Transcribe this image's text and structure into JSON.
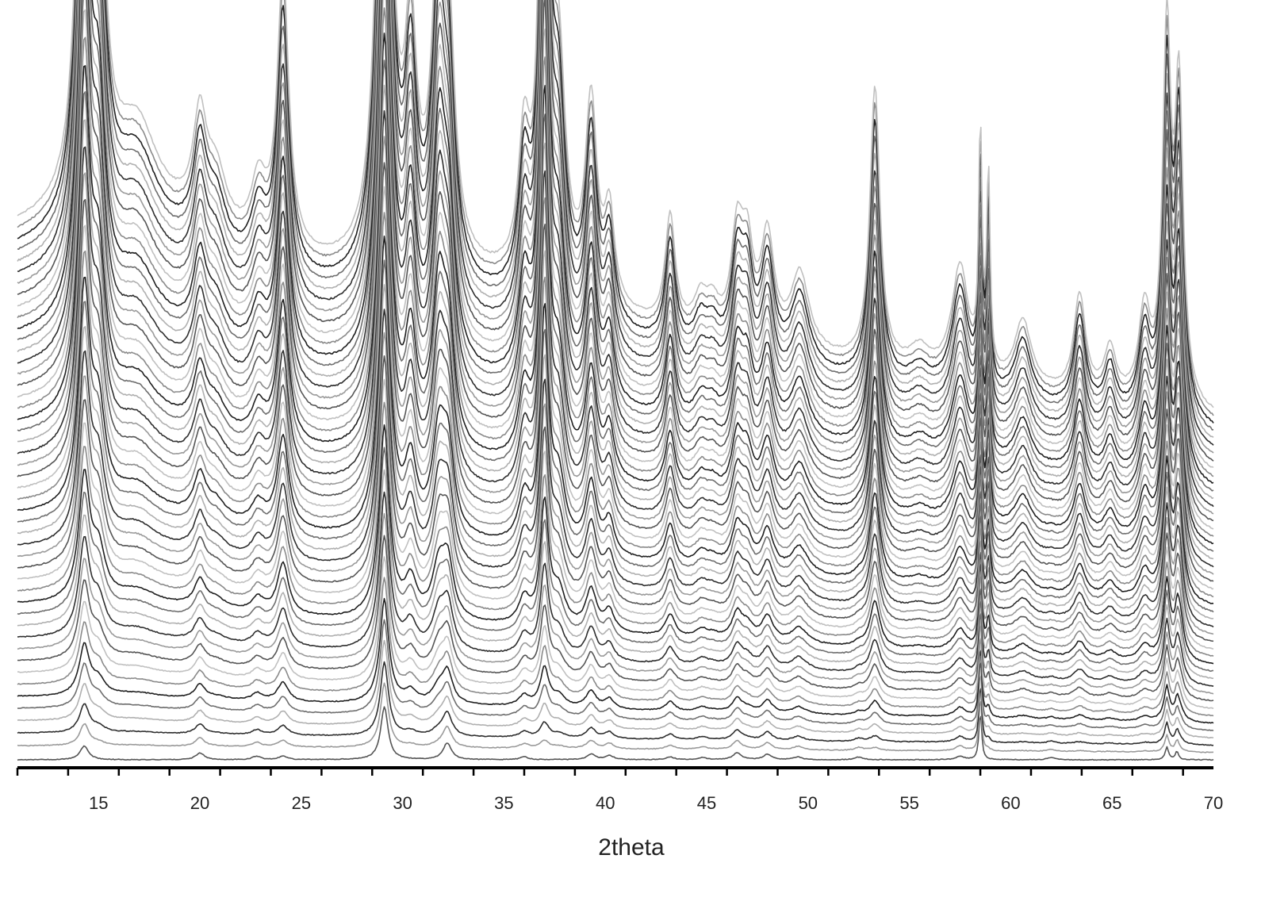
{
  "chart_data": {
    "type": "line",
    "title": "",
    "xlabel": "2theta",
    "ylabel": "",
    "xlim": [
      11,
      70
    ],
    "x_ticks": [
      15,
      20,
      25,
      30,
      35,
      40,
      45,
      50,
      55,
      60,
      65,
      70
    ],
    "x_tick_labels": [
      "15",
      "20",
      "25",
      "30",
      "35",
      "40",
      "45",
      "50",
      "55",
      "60",
      "65",
      "70"
    ],
    "minor_tick_step": 2.5,
    "y_axis_visible": false,
    "grid": false,
    "legend": "none",
    "series_count": 48,
    "series_colors": [
      "#555555",
      "#9a9a9a",
      "#2e2e2e",
      "#b0b0b0",
      "#6e6e6e",
      "#1f1f1f",
      "#8a8a8a",
      "#c0c0c0"
    ],
    "stacking": "waterfall",
    "initial_phase_peaks": [
      {
        "x": 14.3,
        "height": 1.0,
        "width": 0.25
      },
      {
        "x": 20.0,
        "height": 0.5,
        "width": 0.25
      },
      {
        "x": 22.8,
        "height": 0.25,
        "width": 0.25
      },
      {
        "x": 24.1,
        "height": 0.25,
        "width": 0.25
      },
      {
        "x": 29.1,
        "height": 3.8,
        "width": 0.22
      },
      {
        "x": 32.2,
        "height": 1.2,
        "width": 0.25
      },
      {
        "x": 36.0,
        "height": 0.2,
        "width": 0.25
      },
      {
        "x": 39.3,
        "height": 0.4,
        "width": 0.25
      },
      {
        "x": 40.2,
        "height": 0.3,
        "width": 0.25
      },
      {
        "x": 43.2,
        "height": 0.2,
        "width": 0.25
      },
      {
        "x": 44.8,
        "height": 0.15,
        "width": 0.25
      },
      {
        "x": 46.5,
        "height": 0.5,
        "width": 0.25
      },
      {
        "x": 48.0,
        "height": 0.4,
        "width": 0.25
      },
      {
        "x": 49.5,
        "height": 0.2,
        "width": 0.25
      },
      {
        "x": 52.5,
        "height": 0.2,
        "width": 0.25
      },
      {
        "x": 57.5,
        "height": 0.25,
        "width": 0.25
      },
      {
        "x": 58.5,
        "height": 3.5,
        "width": 0.08
      },
      {
        "x": 62.0,
        "height": 0.15,
        "width": 0.25
      },
      {
        "x": 67.7,
        "height": 0.9,
        "width": 0.1
      },
      {
        "x": 68.2,
        "height": 0.6,
        "width": 0.1
      }
    ],
    "final_phase_peaks": [
      {
        "x": 14.3,
        "height": 11.0,
        "width": 0.35
      },
      {
        "x": 15.0,
        "height": 5.0,
        "width": 0.4
      },
      {
        "x": 16.9,
        "height": 1.5,
        "width": 1.2
      },
      {
        "x": 20.0,
        "height": 1.8,
        "width": 0.4
      },
      {
        "x": 20.8,
        "height": 1.0,
        "width": 0.6
      },
      {
        "x": 22.9,
        "height": 1.1,
        "width": 0.45
      },
      {
        "x": 24.1,
        "height": 5.0,
        "width": 0.35
      },
      {
        "x": 29.1,
        "height": 13.0,
        "width": 0.38
      },
      {
        "x": 30.4,
        "height": 3.8,
        "width": 0.35
      },
      {
        "x": 31.8,
        "height": 5.8,
        "width": 0.4
      },
      {
        "x": 32.3,
        "height": 3.0,
        "width": 0.35
      },
      {
        "x": 36.0,
        "height": 2.4,
        "width": 0.35
      },
      {
        "x": 37.0,
        "height": 12.8,
        "width": 0.25
      },
      {
        "x": 37.7,
        "height": 3.7,
        "width": 0.4
      },
      {
        "x": 39.3,
        "height": 3.5,
        "width": 0.35
      },
      {
        "x": 40.2,
        "height": 1.6,
        "width": 0.3
      },
      {
        "x": 43.2,
        "height": 2.0,
        "width": 0.3
      },
      {
        "x": 44.7,
        "height": 0.6,
        "width": 0.4
      },
      {
        "x": 45.3,
        "height": 0.5,
        "width": 0.4
      },
      {
        "x": 46.5,
        "height": 1.8,
        "width": 0.35
      },
      {
        "x": 47.0,
        "height": 1.5,
        "width": 0.35
      },
      {
        "x": 48.0,
        "height": 1.9,
        "width": 0.4
      },
      {
        "x": 49.6,
        "height": 1.4,
        "width": 0.55
      },
      {
        "x": 53.3,
        "height": 5.0,
        "width": 0.3
      },
      {
        "x": 55.5,
        "height": 0.4,
        "width": 0.6
      },
      {
        "x": 57.5,
        "height": 2.0,
        "width": 0.5
      },
      {
        "x": 58.5,
        "height": 4.2,
        "width": 0.1
      },
      {
        "x": 58.9,
        "height": 3.5,
        "width": 0.1
      },
      {
        "x": 60.6,
        "height": 1.2,
        "width": 0.5
      },
      {
        "x": 63.4,
        "height": 1.8,
        "width": 0.35
      },
      {
        "x": 64.9,
        "height": 0.9,
        "width": 0.35
      },
      {
        "x": 66.6,
        "height": 1.6,
        "width": 0.35
      },
      {
        "x": 67.7,
        "height": 6.5,
        "width": 0.25
      },
      {
        "x": 68.3,
        "height": 5.5,
        "width": 0.25
      }
    ]
  }
}
